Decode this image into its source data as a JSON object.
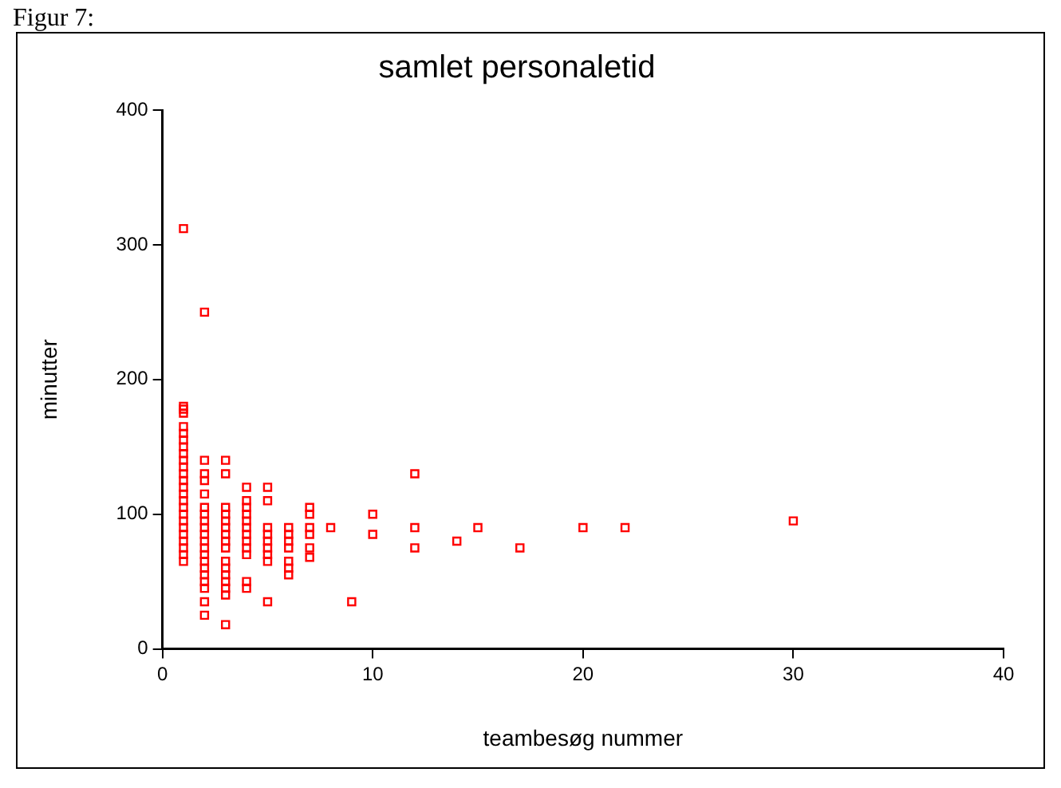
{
  "chart_data": {
    "type": "scatter",
    "title": "samlet personaletid",
    "xlabel": "teambesøg nummer",
    "ylabel": "minutter",
    "annotations": [
      "Figur 7:"
    ],
    "x": [
      1,
      1,
      1,
      1,
      1,
      1,
      1,
      1,
      1,
      1,
      1,
      1,
      1,
      1,
      1,
      1,
      1,
      1,
      1,
      1,
      1,
      1,
      1,
      1,
      1,
      2,
      2,
      2,
      2,
      2,
      2,
      2,
      2,
      2,
      2,
      2,
      2,
      2,
      2,
      2,
      2,
      2,
      2,
      2,
      2,
      3,
      3,
      3,
      3,
      3,
      3,
      3,
      3,
      3,
      3,
      3,
      3,
      3,
      3,
      3,
      3,
      4,
      4,
      4,
      4,
      4,
      4,
      4,
      4,
      4,
      4,
      4,
      4,
      5,
      5,
      5,
      5,
      5,
      5,
      5,
      5,
      5,
      6,
      6,
      6,
      6,
      6,
      6,
      6,
      7,
      7,
      7,
      7,
      7,
      7,
      8,
      9,
      10,
      10,
      12,
      12,
      12,
      14,
      15,
      17,
      20,
      22,
      30
    ],
    "series": [
      {
        "color": "#ff0000",
        "values": [
          312,
          180,
          178,
          175,
          165,
          160,
          155,
          150,
          145,
          140,
          135,
          130,
          125,
          120,
          115,
          110,
          105,
          100,
          95,
          90,
          85,
          80,
          75,
          70,
          65,
          250,
          140,
          130,
          125,
          115,
          105,
          100,
          95,
          90,
          85,
          80,
          75,
          70,
          65,
          60,
          55,
          50,
          45,
          35,
          25,
          140,
          130,
          105,
          100,
          95,
          90,
          85,
          80,
          75,
          65,
          60,
          55,
          50,
          45,
          40,
          18,
          120,
          110,
          105,
          100,
          95,
          90,
          85,
          80,
          75,
          70,
          50,
          45,
          120,
          110,
          90,
          85,
          80,
          75,
          70,
          65,
          35,
          90,
          85,
          80,
          75,
          65,
          60,
          55,
          105,
          100,
          90,
          85,
          75,
          68,
          90,
          35,
          100,
          85,
          130,
          90,
          75,
          80,
          90,
          75,
          90,
          90,
          95
        ]
      }
    ],
    "xlim": [
      0,
      40
    ],
    "xticks": [
      0,
      10,
      20,
      30,
      40
    ],
    "ylim": [
      0,
      400
    ],
    "yticks": [
      0,
      100,
      200,
      300,
      400
    ],
    "grid": false,
    "legend": false,
    "marker": "square"
  }
}
